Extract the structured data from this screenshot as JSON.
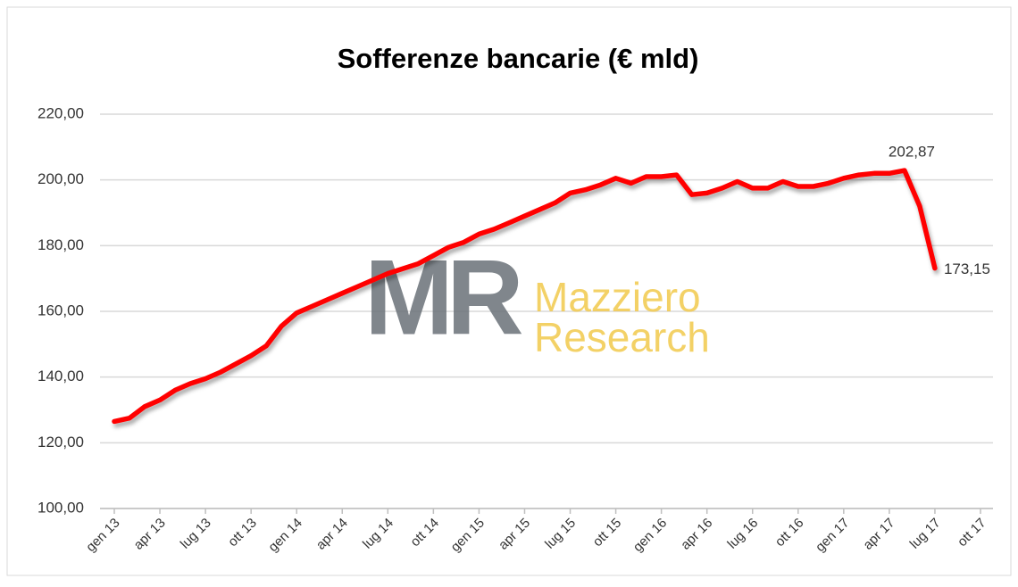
{
  "chart_data": {
    "type": "line",
    "title": "Sofferenze bancarie (€ mld)",
    "watermark": {
      "logo": "MR",
      "lines": [
        "Mazziero",
        "Research"
      ]
    },
    "categories": [
      "gen 13",
      null,
      null,
      "apr 13",
      null,
      null,
      "lug 13",
      null,
      null,
      "ott 13",
      null,
      null,
      "gen 14",
      null,
      null,
      "apr 14",
      null,
      null,
      "lug 14",
      null,
      null,
      "ott 14",
      null,
      null,
      "gen 15",
      null,
      null,
      "apr 15",
      null,
      null,
      "lug 15",
      null,
      null,
      "ott 15",
      null,
      null,
      "gen 16",
      null,
      null,
      "apr 16",
      null,
      null,
      "lug 16",
      null,
      null,
      "ott 16",
      null,
      null,
      "gen 17",
      null,
      null,
      "apr 17",
      null,
      null,
      "lug 17",
      null,
      null,
      "ott 17"
    ],
    "series": [
      {
        "name": "Sofferenze bancarie",
        "color": "#ff0000",
        "values": [
          126.5,
          127.5,
          131,
          133,
          136,
          138,
          139.5,
          141.5,
          144,
          146.5,
          149.5,
          155.5,
          159.5,
          161.5,
          163.5,
          165.5,
          167.5,
          169.5,
          171.5,
          173,
          174.5,
          177,
          179.5,
          181,
          183.5,
          185,
          187,
          189,
          191,
          193,
          196,
          197,
          198.5,
          200.5,
          199,
          201,
          201,
          201.5,
          195.5,
          196,
          197.5,
          199.5,
          197.5,
          197.5,
          199.5,
          198,
          198,
          199,
          200.5,
          201.5,
          202,
          202,
          202.87,
          192,
          173.15,
          null,
          null,
          null
        ],
        "value_labels": [
          null,
          null,
          null,
          null,
          null,
          null,
          null,
          null,
          null,
          null,
          null,
          null,
          null,
          null,
          null,
          null,
          null,
          null,
          null,
          null,
          null,
          null,
          null,
          null,
          null,
          null,
          null,
          null,
          null,
          null,
          null,
          null,
          null,
          null,
          null,
          null,
          null,
          null,
          null,
          null,
          null,
          null,
          null,
          null,
          null,
          null,
          null,
          null,
          null,
          null,
          null,
          null,
          "202,87",
          null,
          "173,15",
          null,
          null,
          null
        ]
      }
    ],
    "ylim": [
      100,
      220
    ],
    "yticks": [
      {
        "value": 100,
        "label": "100,00"
      },
      {
        "value": 120,
        "label": "120,00"
      },
      {
        "value": 140,
        "label": "140,00"
      },
      {
        "value": 160,
        "label": "160,00"
      },
      {
        "value": 180,
        "label": "180,00"
      },
      {
        "value": 200,
        "label": "200,00"
      },
      {
        "value": 220,
        "label": "220,00"
      }
    ],
    "grid": true
  }
}
